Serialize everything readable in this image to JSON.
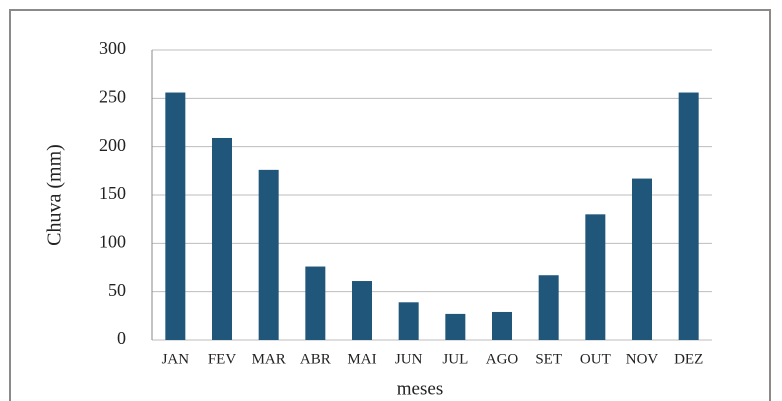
{
  "chart_data": {
    "type": "bar",
    "categories": [
      "JAN",
      "FEV",
      "MAR",
      "ABR",
      "MAI",
      "JUN",
      "JUL",
      "AGO",
      "SET",
      "OUT",
      "NOV",
      "DEZ"
    ],
    "values": [
      256,
      209,
      176,
      76,
      61,
      39,
      27,
      29,
      67,
      130,
      167,
      256
    ],
    "color": "#1f567a",
    "x_label": "meses",
    "y_label": "Chuva (mm)",
    "ylim": [
      0,
      300
    ],
    "yticks": [
      0,
      50,
      100,
      150,
      200,
      250,
      300
    ],
    "grid": true
  }
}
